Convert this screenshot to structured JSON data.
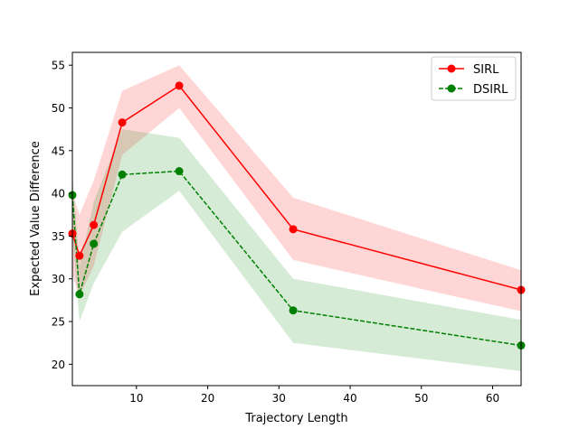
{
  "chart_data": {
    "type": "line",
    "title": "",
    "xlabel": "Trajectory Length",
    "ylabel": "Expected Value Difference",
    "xlim": [
      1,
      64
    ],
    "ylim": [
      17.5,
      56.5
    ],
    "xticks": [
      10,
      20,
      30,
      40,
      50,
      60
    ],
    "yticks": [
      20,
      25,
      30,
      35,
      40,
      45,
      50,
      55
    ],
    "grid": false,
    "legend_position": "top-right",
    "series": [
      {
        "name": "SIRL",
        "color": "#ff0000",
        "linestyle": "solid",
        "marker": "circle",
        "x": [
          1,
          2,
          4,
          8,
          16,
          32,
          64
        ],
        "values": [
          35.3,
          32.7,
          36.3,
          48.3,
          52.6,
          35.8,
          28.7
        ],
        "lower": [
          30.5,
          28.0,
          31.5,
          44.5,
          50.0,
          32.2,
          26.2
        ],
        "upper": [
          40.0,
          37.5,
          41.5,
          52.0,
          55.0,
          39.5,
          31.0
        ]
      },
      {
        "name": "DSIRL",
        "color": "#008000",
        "linestyle": "dashed",
        "marker": "circle",
        "x": [
          1,
          2,
          4,
          8,
          16,
          32,
          64
        ],
        "values": [
          39.8,
          28.2,
          34.1,
          42.2,
          42.6,
          26.3,
          22.2
        ],
        "lower": [
          35.0,
          25.0,
          29.5,
          35.5,
          40.3,
          22.5,
          19.2
        ],
        "upper": [
          42.5,
          31.5,
          39.0,
          47.5,
          46.5,
          30.0,
          25.2
        ]
      }
    ]
  }
}
